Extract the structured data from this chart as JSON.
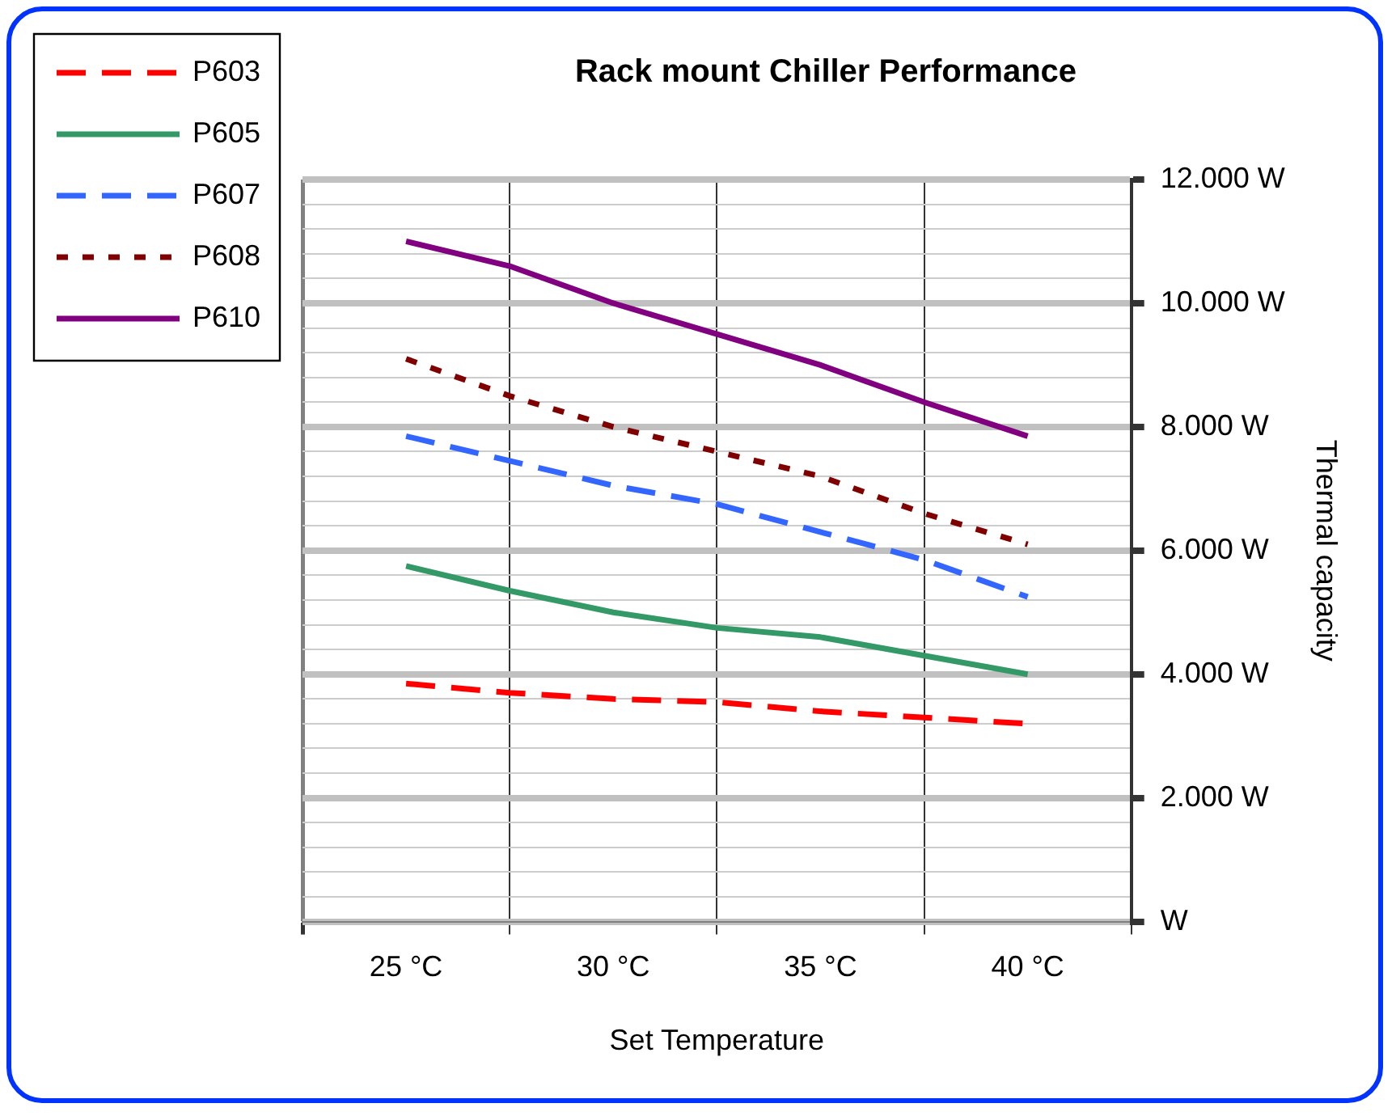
{
  "chart_data": {
    "type": "line",
    "title": "Rack mount Chiller Performance",
    "xlabel": "Set Temperature",
    "ylabel": "Thermal capacity",
    "categories": [
      "25 °C",
      null,
      "30 °C",
      null,
      "35 °C",
      null,
      "40 °C"
    ],
    "series": [
      {
        "name": "P603",
        "color": "#ff0000",
        "line_style": "dashed",
        "values": [
          3850,
          3700,
          3600,
          3550,
          3400,
          3300,
          3200
        ]
      },
      {
        "name": "P605",
        "color": "#339966",
        "line_style": "solid",
        "values": [
          5750,
          5350,
          5000,
          4750,
          4600,
          4300,
          4000
        ]
      },
      {
        "name": "P607",
        "color": "#3366ff",
        "line_style": "dashed",
        "values": [
          7850,
          7450,
          7050,
          6750,
          6300,
          5850,
          5250
        ]
      },
      {
        "name": "P608",
        "color": "#800000",
        "line_style": "dotted",
        "values": [
          9100,
          8500,
          8000,
          7600,
          7200,
          6600,
          6100
        ]
      },
      {
        "name": "P610",
        "color": "#800080",
        "line_style": "solid",
        "values": [
          11000,
          10600,
          10000,
          9500,
          9000,
          8400,
          7850
        ]
      }
    ],
    "ylim": [
      0,
      12000
    ],
    "yticks": [
      {
        "value": 0,
        "label": "W"
      },
      {
        "value": 400,
        "label": null
      },
      {
        "value": 800,
        "label": null
      },
      {
        "value": 1200,
        "label": null
      },
      {
        "value": 1600,
        "label": null
      },
      {
        "value": 2000,
        "label": "2.000 W"
      },
      {
        "value": 2400,
        "label": null
      },
      {
        "value": 2800,
        "label": null
      },
      {
        "value": 3200,
        "label": null
      },
      {
        "value": 3600,
        "label": null
      },
      {
        "value": 4000,
        "label": "4.000 W"
      },
      {
        "value": 4400,
        "label": null
      },
      {
        "value": 4800,
        "label": null
      },
      {
        "value": 5200,
        "label": null
      },
      {
        "value": 5600,
        "label": null
      },
      {
        "value": 6000,
        "label": "6.000 W"
      },
      {
        "value": 6400,
        "label": null
      },
      {
        "value": 6800,
        "label": null
      },
      {
        "value": 7200,
        "label": null
      },
      {
        "value": 7600,
        "label": null
      },
      {
        "value": 8000,
        "label": "8.000 W"
      },
      {
        "value": 8400,
        "label": null
      },
      {
        "value": 8800,
        "label": null
      },
      {
        "value": 9200,
        "label": null
      },
      {
        "value": 9600,
        "label": null
      },
      {
        "value": 10000,
        "label": "10.000 W"
      },
      {
        "value": 10400,
        "label": null
      },
      {
        "value": 10800,
        "label": null
      },
      {
        "value": 11200,
        "label": null
      },
      {
        "value": 11600,
        "label": null
      },
      {
        "value": 12000,
        "label": "12.000 W"
      }
    ],
    "grid": true,
    "legend": "top left",
    "marker": "none"
  }
}
